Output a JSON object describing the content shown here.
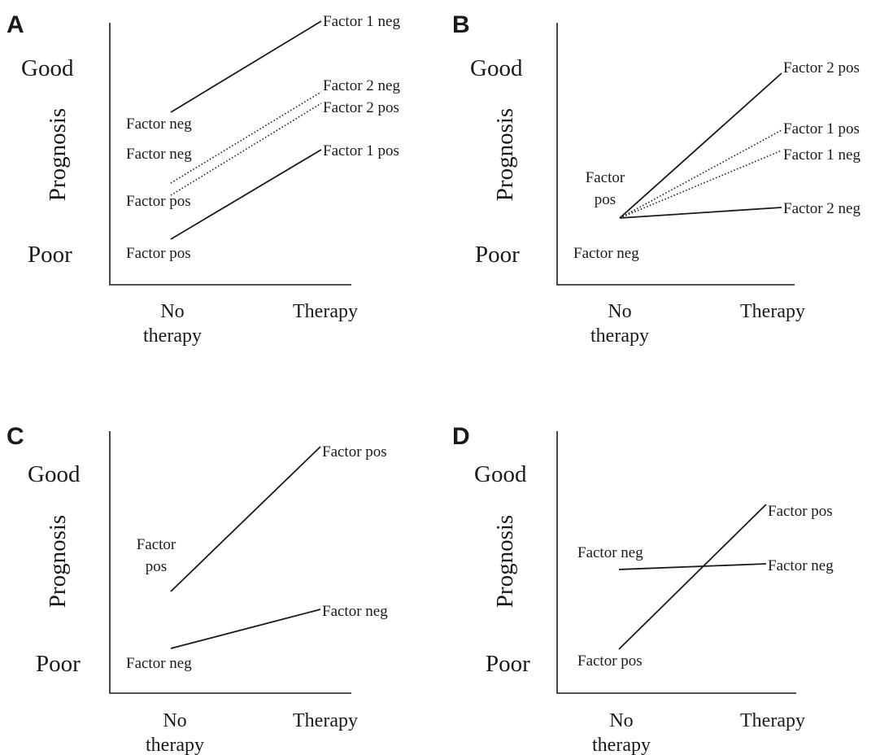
{
  "axis_text": {
    "good": "Good",
    "poor": "Poor",
    "ylabel": "Prognosis",
    "x_no_therapy_1": "No",
    "x_no_therapy_2": "therapy",
    "x_therapy": "Therapy"
  },
  "panels": {
    "A": {
      "letter": "A",
      "start_labels": [
        "Factor neg",
        "Factor neg",
        "Factor pos",
        "Factor pos"
      ],
      "end_labels": [
        "Factor 1 neg",
        "Factor 2 neg",
        "Factor 2 pos",
        "Factor 1 pos"
      ]
    },
    "B": {
      "letter": "B",
      "start_label_1": "Factor",
      "start_label_2": "pos",
      "start_label_neg": "Factor neg",
      "end_labels": [
        "Factor 2 pos",
        "Factor 1 pos",
        "Factor 1 neg",
        "Factor 2 neg"
      ]
    },
    "C": {
      "letter": "C",
      "start_label_1": "Factor",
      "start_label_2": "pos",
      "start_label_neg": "Factor neg",
      "end_labels": [
        "Factor pos",
        "Factor neg"
      ]
    },
    "D": {
      "letter": "D",
      "start_labels": [
        "Factor neg",
        "Factor pos"
      ],
      "end_labels": [
        "Factor pos",
        "Factor neg"
      ]
    }
  },
  "colors": {
    "ink": "#1a1a1a",
    "background": "#ffffff"
  }
}
